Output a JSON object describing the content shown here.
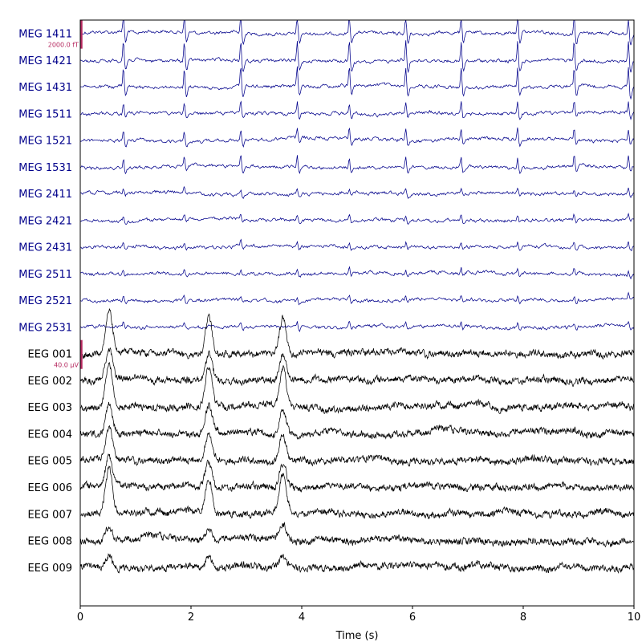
{
  "chart_data": {
    "type": "line",
    "xlabel": "Time (s)",
    "xlim": [
      0,
      10
    ],
    "x_ticks": [
      0,
      2,
      4,
      6,
      8,
      10
    ],
    "meg_color": "#00008b",
    "eeg_color": "#000000",
    "scale_color": "#b5285f",
    "channels": [
      {
        "label": "MEG 1411",
        "type": "meg"
      },
      {
        "label": "MEG 1421",
        "type": "meg"
      },
      {
        "label": "MEG 1431",
        "type": "meg"
      },
      {
        "label": "MEG 1511",
        "type": "meg"
      },
      {
        "label": "MEG 1521",
        "type": "meg"
      },
      {
        "label": "MEG 1531",
        "type": "meg"
      },
      {
        "label": "MEG 2411",
        "type": "meg"
      },
      {
        "label": "MEG 2421",
        "type": "meg"
      },
      {
        "label": "MEG 2431",
        "type": "meg"
      },
      {
        "label": "MEG 2511",
        "type": "meg"
      },
      {
        "label": "MEG 2521",
        "type": "meg"
      },
      {
        "label": "MEG 2531",
        "type": "meg"
      },
      {
        "label": "EEG 001",
        "type": "eeg"
      },
      {
        "label": "EEG 002",
        "type": "eeg"
      },
      {
        "label": "EEG 003",
        "type": "eeg"
      },
      {
        "label": "EEG 004",
        "type": "eeg"
      },
      {
        "label": "EEG 005",
        "type": "eeg"
      },
      {
        "label": "EEG 006",
        "type": "eeg"
      },
      {
        "label": "EEG 007",
        "type": "eeg"
      },
      {
        "label": "EEG 008",
        "type": "eeg"
      },
      {
        "label": "EEG 009",
        "type": "eeg"
      }
    ],
    "meg_spike_times": [
      0.78,
      1.88,
      2.9,
      3.92,
      4.86,
      5.88,
      6.88,
      7.9,
      8.92,
      9.9
    ],
    "eeg_peak_times": [
      0.52,
      2.32,
      3.66
    ],
    "scale_bars": [
      {
        "label": "2000.0 fT",
        "channel": "MEG 1411"
      },
      {
        "label": "40.0 µV",
        "channel": "EEG 001"
      }
    ]
  }
}
